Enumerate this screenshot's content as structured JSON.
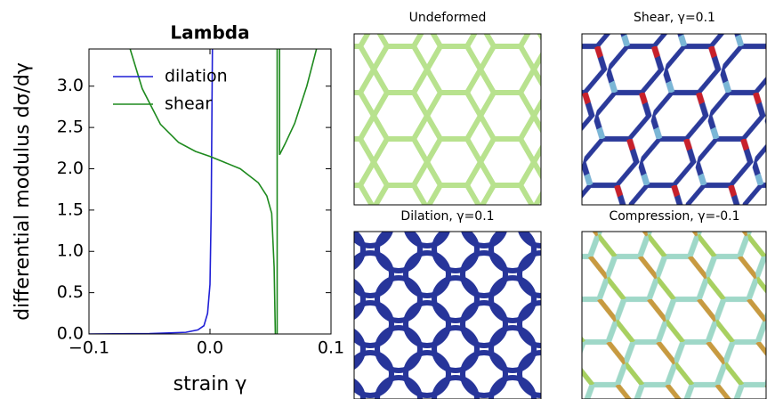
{
  "chart_data": {
    "type": "line",
    "title": "Lambda",
    "xlabel": "strain γ",
    "ylabel": "differential modulus dσ/dγ",
    "xlim": [
      -0.1,
      0.1
    ],
    "ylim": [
      0,
      3.45
    ],
    "xticks": [
      {
        "value": -0.1,
        "label": "−0.1"
      },
      {
        "value": 0,
        "label": "0.0"
      },
      0.1
    ],
    "yticks": [
      {
        "value": 0,
        "label": "0.0"
      },
      0.5,
      {
        "value": 1,
        "label": "1.0"
      },
      1.5,
      {
        "value": 2,
        "label": "2.0"
      },
      2.5,
      {
        "value": 3,
        "label": "3.0"
      }
    ],
    "legend": "upper left",
    "series": [
      {
        "name": "dilation",
        "color": "#1f1fd6",
        "x": [
          -0.1,
          -0.05,
          -0.02,
          -0.01,
          -0.005,
          -0.002,
          0,
          0.001,
          0.002
        ],
        "values": [
          0.0,
          0.005,
          0.02,
          0.05,
          0.1,
          0.25,
          0.6,
          1.5,
          3.45
        ]
      },
      {
        "name": "shear",
        "color": "#1e8a1e",
        "x": [
          -0.066,
          -0.056,
          -0.041,
          -0.026,
          -0.012,
          0.0,
          0.01,
          0.025,
          0.04,
          0.047,
          0.051,
          0.053,
          0.054,
          null,
          0.0555,
          0.0555,
          null,
          0.0575,
          0.0575,
          0.062,
          0.07,
          0.08,
          0.088
        ],
        "values": [
          3.45,
          2.97,
          2.54,
          2.32,
          2.21,
          2.15,
          2.09,
          2.0,
          1.83,
          1.67,
          1.46,
          0.81,
          0.0,
          null,
          3.45,
          0.0,
          null,
          3.45,
          2.17,
          2.3,
          2.55,
          3.0,
          3.45
        ]
      }
    ]
  },
  "panels": [
    {
      "title": "Undeformed"
    },
    {
      "title": "Shear, γ=0.1"
    },
    {
      "title": "Dilation, γ=0.1"
    },
    {
      "title": "Compression, γ=-0.1"
    }
  ]
}
